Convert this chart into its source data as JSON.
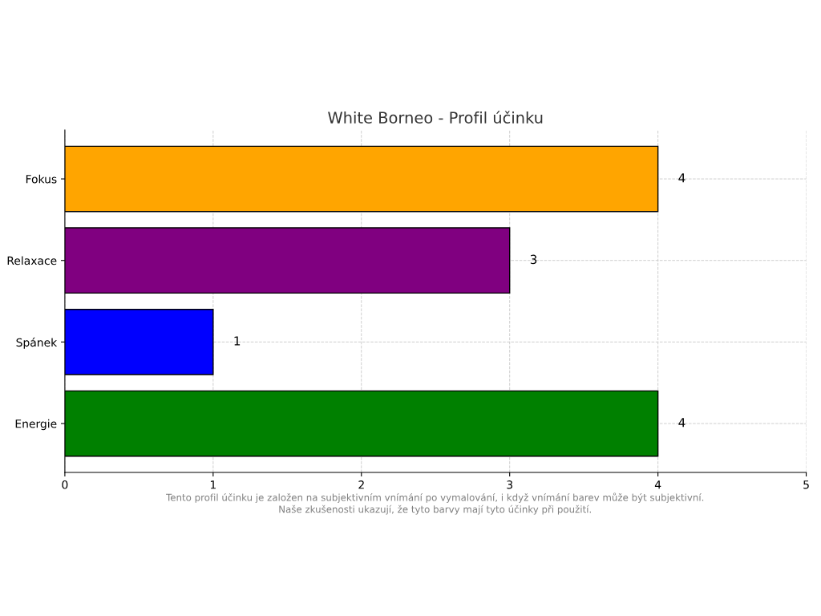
{
  "chart_data": {
    "type": "bar",
    "orientation": "horizontal",
    "title": "White Borneo - Profil účinku",
    "categories": [
      "Fokus",
      "Relaxace",
      "Spánek",
      "Energie"
    ],
    "values": [
      4,
      3,
      1,
      4
    ],
    "colors": [
      "#ffa500",
      "#800080",
      "#0000ff",
      "#008000"
    ],
    "xlim": [
      0,
      5
    ],
    "xticks": [
      0,
      1,
      2,
      3,
      4,
      5
    ],
    "grid": true,
    "data_labels": true,
    "annotations": [
      "Tento profil účinku je založen na subjektivním vnímání po vymalování, i když vnímání barev může být subjektivní.\nNaše zkušenosti ukazují, že tyto barvy mají tyto účinky při použití."
    ]
  }
}
